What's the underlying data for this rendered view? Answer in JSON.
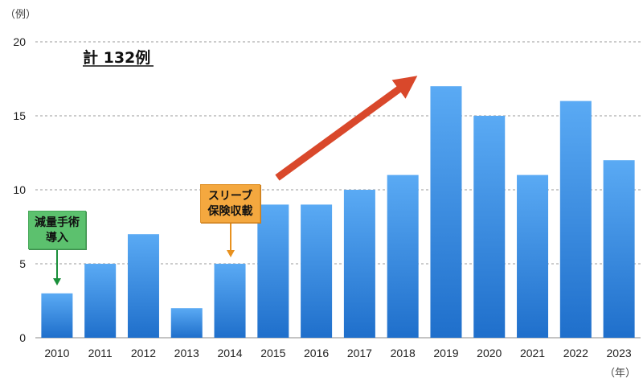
{
  "chart_data": {
    "type": "bar",
    "categories": [
      "2010",
      "2011",
      "2012",
      "2013",
      "2014",
      "2015",
      "2016",
      "2017",
      "2018",
      "2019",
      "2020",
      "2021",
      "2022",
      "2023"
    ],
    "values": [
      3,
      5,
      7,
      2,
      5,
      9,
      9,
      10,
      11,
      17,
      15,
      11,
      16,
      12
    ],
    "ylim": [
      0,
      20
    ],
    "yticks": [
      0,
      5,
      10,
      15,
      20
    ],
    "y_unit": "（例）",
    "x_unit": "（年）",
    "grid": true,
    "annotations": [
      {
        "text": "減量手術\n導入",
        "category": "2010",
        "color": "#5cc16e"
      },
      {
        "text": "スリーブ\n保険収載",
        "category": "2014",
        "color": "#f4a83f"
      }
    ],
    "total_label": "計 132例",
    "trend_arrow_color": "#d9482b"
  }
}
